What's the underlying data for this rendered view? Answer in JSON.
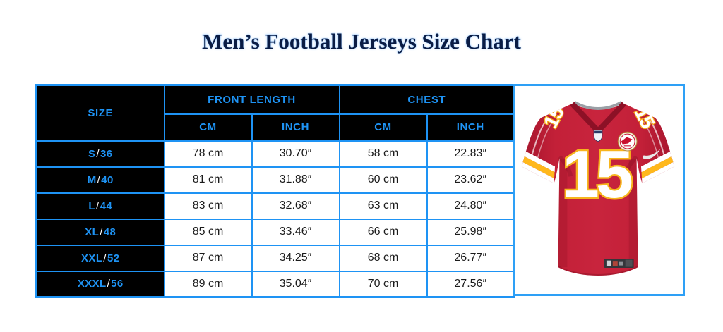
{
  "page": {
    "title": "Men’s Football Jerseys Size Chart",
    "title_color": "#0a1c44",
    "background": "#ffffff"
  },
  "colors": {
    "accent_blue": "#1e93f4",
    "table_header_bg": "#000000",
    "cell_text": "#1b1b1b",
    "slash_white": "#ffffff",
    "jersey_red": "#c32038",
    "jersey_gold": "#f7b51d"
  },
  "chart_data": {
    "type": "table",
    "title": "Men’s Football Jerseys Size Chart",
    "headers": {
      "size": "SIZE",
      "front_length": "FRONT LENGTH",
      "chest": "CHEST"
    },
    "sub_headers": [
      "CM",
      "INCH",
      "CM",
      "INCH"
    ],
    "rows": [
      {
        "size": "S/36",
        "front_length_cm": 78,
        "front_length_inch": 30.7,
        "chest_cm": 58,
        "chest_inch": 22.83
      },
      {
        "size": "M/40",
        "front_length_cm": 81,
        "front_length_inch": 31.88,
        "chest_cm": 60,
        "chest_inch": 23.62
      },
      {
        "size": "L/44",
        "front_length_cm": 83,
        "front_length_inch": 32.68,
        "chest_cm": 63,
        "chest_inch": 24.8
      },
      {
        "size": "XL/48",
        "front_length_cm": 85,
        "front_length_inch": 33.46,
        "chest_cm": 66,
        "chest_inch": 25.98
      },
      {
        "size": "XXL/52",
        "front_length_cm": 87,
        "front_length_inch": 34.25,
        "chest_cm": 68,
        "chest_inch": 26.77
      },
      {
        "size": "XXXL/56",
        "front_length_cm": 89,
        "front_length_inch": 35.04,
        "chest_cm": 70,
        "chest_inch": 27.56
      }
    ],
    "display_rows": [
      [
        "S/36",
        "78 cm",
        "30.70″",
        "58 cm",
        "22.83″"
      ],
      [
        "M/40",
        "81 cm",
        "31.88″",
        "60 cm",
        "23.62″"
      ],
      [
        "L/44",
        "83 cm",
        "32.68″",
        "63 cm",
        "24.80″"
      ],
      [
        "XL/48",
        "85 cm",
        "33.46″",
        "66 cm",
        "25.98″"
      ],
      [
        "XXL/52",
        "87 cm",
        "34.25″",
        "68 cm",
        "26.77″"
      ],
      [
        "XXXL/56",
        "89 cm",
        "35.04″",
        "70 cm",
        "27.56″"
      ]
    ]
  },
  "jersey": {
    "number": "15",
    "style": "red football game jersey with gold-trimmed white numbers"
  }
}
